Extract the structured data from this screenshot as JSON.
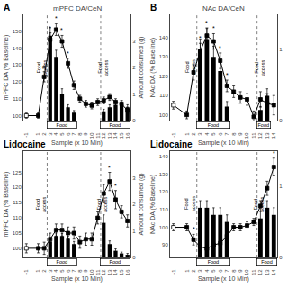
{
  "chart_data": [
    {
      "type": "line",
      "title": "mPFC DA/CeN",
      "xlabel": "Sample (x 10 Min)",
      "ylabel": "mPFC DA (% Baseline)",
      "y2label": "Amount consumed (g)",
      "xlim": [
        -1.5,
        16.5
      ],
      "xticks": [
        -1,
        1,
        2,
        3,
        4,
        5,
        6,
        7,
        8,
        9,
        10,
        11,
        12,
        13,
        14,
        15,
        16
      ],
      "ylim": [
        97,
        160
      ],
      "yticks": [
        100,
        110,
        120,
        130,
        140,
        150
      ],
      "y2lim": [
        0,
        4
      ],
      "y2ticks": [
        0,
        1,
        2,
        3
      ],
      "grid": false,
      "series": [
        {
          "type": "bar",
          "axis": "y2",
          "color": "black",
          "x": [
            3,
            4,
            5,
            6,
            7,
            12,
            13,
            14,
            15,
            16
          ],
          "values": [
            3.2,
            2.4,
            1.0,
            0.5,
            0.3,
            0.35,
            0.5,
            0.6,
            0.6,
            0.5
          ],
          "error": [
            0.3,
            0.25,
            0.2,
            0.1,
            0.08,
            0.08,
            0.1,
            0.1,
            0.1,
            0.1
          ]
        },
        {
          "type": "line",
          "color": "black",
          "marker": "square",
          "colors": [
            "white",
            "black",
            "black",
            "black",
            "black",
            "black",
            "black",
            "black",
            "black",
            "black",
            "black",
            "black",
            "black",
            "black",
            "black",
            "black",
            "black"
          ],
          "x": [
            -1,
            1,
            2,
            3,
            4,
            5,
            6,
            7,
            8,
            9,
            10,
            11,
            12,
            13,
            14,
            15,
            16
          ],
          "values": [
            100,
            100,
            123,
            145,
            151,
            144,
            131,
            118,
            110,
            107,
            106,
            108,
            109,
            111,
            108,
            107,
            103
          ],
          "error": [
            1.5,
            1.5,
            3,
            4,
            3.5,
            3.5,
            3,
            2.5,
            2,
            2,
            2,
            2,
            2,
            2,
            2,
            2,
            2
          ]
        }
      ],
      "vlines": {
        "x": [
          2.5,
          11.5
        ],
        "color": "gray",
        "line_style": "dotted"
      },
      "annotations": [
        {
          "text": "A"
        },
        {
          "text": "*",
          "x": 3
        },
        {
          "text": "*",
          "x": 4
        },
        {
          "text": "*",
          "x": 5
        },
        {
          "text": "*",
          "x": 6
        },
        {
          "text": "#",
          "x": 2
        },
        {
          "text": "Food\naccess",
          "x": 1.5,
          "y": 2,
          "axis": "y2"
        },
        {
          "text": "Food\naccess",
          "x": 11.8,
          "y": 2,
          "axis": "y2"
        },
        {
          "text": "Food",
          "x": 5,
          "x_range": [
            3,
            7
          ]
        },
        {
          "text": "Food",
          "x": 14,
          "x_range": [
            12,
            16
          ]
        }
      ]
    },
    {
      "type": "line",
      "title": "NAc DA/CeN",
      "xlabel": "Sample (x 10 Min)",
      "ylabel": "NAc DA (% Baseline)",
      "xlim": [
        -1.5,
        14.5
      ],
      "xticks": [
        -1,
        1,
        2,
        3,
        4,
        5,
        6,
        7,
        8,
        9,
        10,
        11,
        12,
        13,
        14
      ],
      "ylim": [
        97,
        152
      ],
      "yticks": [
        100,
        110,
        120,
        130,
        140
      ],
      "y2lim": [
        0,
        1.5
      ],
      "y2ticks": [
        0,
        1
      ],
      "grid": false,
      "series": [
        {
          "type": "bar",
          "axis": "y2",
          "color": "black",
          "x": [
            3,
            4,
            5,
            6,
            7,
            12,
            13
          ],
          "values": [
            1.0,
            1.15,
            0.9,
            0.7,
            0.2,
            0.15,
            0.35
          ],
          "error": [
            0.15,
            0.15,
            0.15,
            0.12,
            0.07,
            0.05,
            0.1
          ]
        },
        {
          "type": "line",
          "color": "black",
          "marker": "square",
          "colors": [
            "white",
            "black",
            "black",
            "black",
            "black",
            "black",
            "black",
            "black",
            "black",
            "black",
            "black",
            "black",
            "black",
            "black",
            "black"
          ],
          "x": [
            -1,
            1,
            2,
            3,
            4,
            5,
            6,
            7,
            8,
            9,
            10,
            11,
            12,
            13,
            14
          ],
          "values": [
            105,
            100,
            122,
            133,
            141,
            138,
            128,
            115,
            112,
            109,
            108,
            99,
            108,
            106,
            105
          ],
          "error": [
            2,
            2,
            4,
            4,
            4,
            4,
            4,
            3,
            3,
            3,
            3,
            3,
            4,
            5,
            5
          ]
        }
      ],
      "vlines": {
        "x": [
          2.5,
          11.5
        ],
        "color": "gray",
        "line_style": "dotted"
      },
      "annotations": [
        {
          "text": "B"
        },
        {
          "text": "*",
          "x": 3
        },
        {
          "text": "*",
          "x": 4
        },
        {
          "text": "*",
          "x": 5
        },
        {
          "text": "*",
          "x": 6
        },
        {
          "text": "*",
          "x": 7
        },
        {
          "text": "Food\naccess",
          "x": 1.5,
          "y": 0.75,
          "axis": "y2"
        },
        {
          "text": "Food\naccess",
          "x": 11.8,
          "y": 0.75,
          "axis": "y2"
        },
        {
          "text": "Food",
          "x": 5,
          "x_range": [
            3,
            7
          ]
        },
        {
          "text": "Food",
          "x": 12.5,
          "x_range": [
            12,
            13
          ]
        }
      ]
    },
    {
      "type": "line",
      "xlabel": "Sample (x 10 Min)",
      "ylabel": "mPFC DA (% Baseline)",
      "y2label": "Amount consumed (g)",
      "xlim": [
        -1.5,
        16.5
      ],
      "xticks": [
        -1,
        1,
        2,
        3,
        4,
        5,
        6,
        7,
        8,
        9,
        10,
        11,
        12,
        13,
        14,
        15,
        16
      ],
      "ylim": [
        97,
        132
      ],
      "yticks": [
        100,
        105,
        110,
        115,
        120,
        125
      ],
      "y2lim": [
        0,
        4
      ],
      "y2ticks": [
        0,
        1,
        2,
        3
      ],
      "grid": false,
      "series": [
        {
          "type": "bar",
          "axis": "y2",
          "color": "black",
          "x": [
            3,
            4,
            5,
            6,
            7,
            12,
            13,
            14,
            15,
            16
          ],
          "values": [
            0.6,
            0.8,
            0.8,
            0.7,
            0.5,
            1.3,
            0.5,
            0.25,
            0.15,
            0.1
          ],
          "error": [
            0.12,
            0.12,
            0.1,
            0.1,
            0.1,
            0.3,
            0.12,
            0.07,
            0.05,
            0.05
          ]
        },
        {
          "type": "line",
          "color": "black",
          "marker": "square",
          "colors": [
            "white",
            "black",
            "black",
            "black",
            "black",
            "black",
            "black",
            "black",
            "black",
            "black",
            "black",
            "black",
            "black",
            "black",
            "black",
            "black",
            "black"
          ],
          "x": [
            -1,
            1,
            2,
            3,
            4,
            5,
            6,
            7,
            8,
            9,
            10,
            11,
            12,
            13,
            14,
            15,
            16
          ],
          "values": [
            100,
            100,
            100,
            103,
            106,
            106,
            105,
            105,
            102,
            103,
            103,
            110,
            118,
            122,
            116,
            112,
            109
          ],
          "error": [
            1.5,
            1.5,
            2,
            2,
            2,
            2,
            2,
            2,
            2,
            2,
            2,
            2,
            3,
            3,
            3,
            2,
            2
          ]
        }
      ],
      "vlines": {
        "x": [
          2.5,
          11.5
        ],
        "color": "gray",
        "line_style": "dotted"
      },
      "annotations": [
        {
          "text": "Lidocaine",
          "x_range": [
            -1.3,
            10.5
          ],
          "y_range": [
            128.5,
            132
          ],
          "color": "#c8c8c8"
        },
        {
          "text": "*",
          "x": 13
        },
        {
          "text": "*",
          "x": 14
        },
        {
          "text": "Food\naccess",
          "x": 1.5,
          "y": 2,
          "axis": "y2"
        },
        {
          "text": "Food\naccess",
          "x": 11.8,
          "y": 2,
          "axis": "y2"
        },
        {
          "text": "Food",
          "x": 5,
          "x_range": [
            3,
            7
          ]
        },
        {
          "text": "Food",
          "x": 14,
          "x_range": [
            12,
            16
          ]
        }
      ]
    },
    {
      "type": "line",
      "xlabel": "Sample (x 10 Min)",
      "ylabel": "NAc DA (% Baseline)",
      "xlim": [
        -1.5,
        14.5
      ],
      "xticks": [
        -1,
        1,
        2,
        3,
        4,
        5,
        6,
        7,
        8,
        9,
        10,
        11,
        12,
        13,
        14
      ],
      "ylim": [
        83,
        143
      ],
      "yticks": [
        90,
        100,
        110,
        120,
        130,
        140
      ],
      "y2lim": [
        0,
        1.5
      ],
      "y2ticks": [
        0,
        1
      ],
      "grid": false,
      "series": [
        {
          "type": "bar",
          "axis": "y2",
          "color": "black",
          "x": [
            3,
            4,
            5,
            6,
            7,
            12,
            13,
            14
          ],
          "values": [
            0.7,
            0.7,
            0.6,
            0.6,
            0.5,
            0.55,
            0.7,
            0.6
          ],
          "error": [
            0.1,
            0.1,
            0.1,
            0.1,
            0.1,
            0.1,
            0.1,
            0.1
          ]
        },
        {
          "type": "line",
          "color": "black",
          "marker": "square",
          "colors": [
            "white",
            "black",
            "black",
            "black",
            "black",
            "black",
            "black",
            "black",
            "black",
            "black",
            "black",
            "black",
            "black",
            "black",
            "black"
          ],
          "x": [
            -1,
            1,
            2,
            3,
            4,
            5,
            6,
            7,
            8,
            9,
            10,
            11,
            12,
            13,
            14
          ],
          "values": [
            100,
            100,
            93,
            89,
            88,
            90,
            91,
            95,
            100,
            100,
            101,
            103,
            112,
            122,
            134
          ],
          "error": [
            2,
            2,
            3,
            3,
            3,
            3,
            3,
            2,
            2,
            2,
            2,
            2,
            3,
            4,
            5
          ]
        }
      ],
      "vlines": {
        "x": [
          2.5,
          11.5
        ],
        "color": "gray",
        "line_style": "dotted"
      },
      "annotations": [
        {
          "text": "Lidocaine",
          "x_range": [
            -1.3,
            10.5
          ],
          "y_range": [
            137,
            143
          ],
          "color": "#c8c8c8"
        },
        {
          "text": "*",
          "x": 2
        },
        {
          "text": "*",
          "x": 3
        },
        {
          "text": "*",
          "x": 4
        },
        {
          "text": "*",
          "x": 14
        },
        {
          "text": "Food\naccess",
          "x": 1.5,
          "y": 0.75,
          "axis": "y2"
        },
        {
          "text": "Food\naccess",
          "x": 11.8,
          "y": 0.75,
          "axis": "y2"
        },
        {
          "text": "Food",
          "x": 5,
          "x_range": [
            3,
            7
          ]
        },
        {
          "text": "Food",
          "x": 13,
          "x_range": [
            12,
            14
          ]
        }
      ]
    }
  ]
}
